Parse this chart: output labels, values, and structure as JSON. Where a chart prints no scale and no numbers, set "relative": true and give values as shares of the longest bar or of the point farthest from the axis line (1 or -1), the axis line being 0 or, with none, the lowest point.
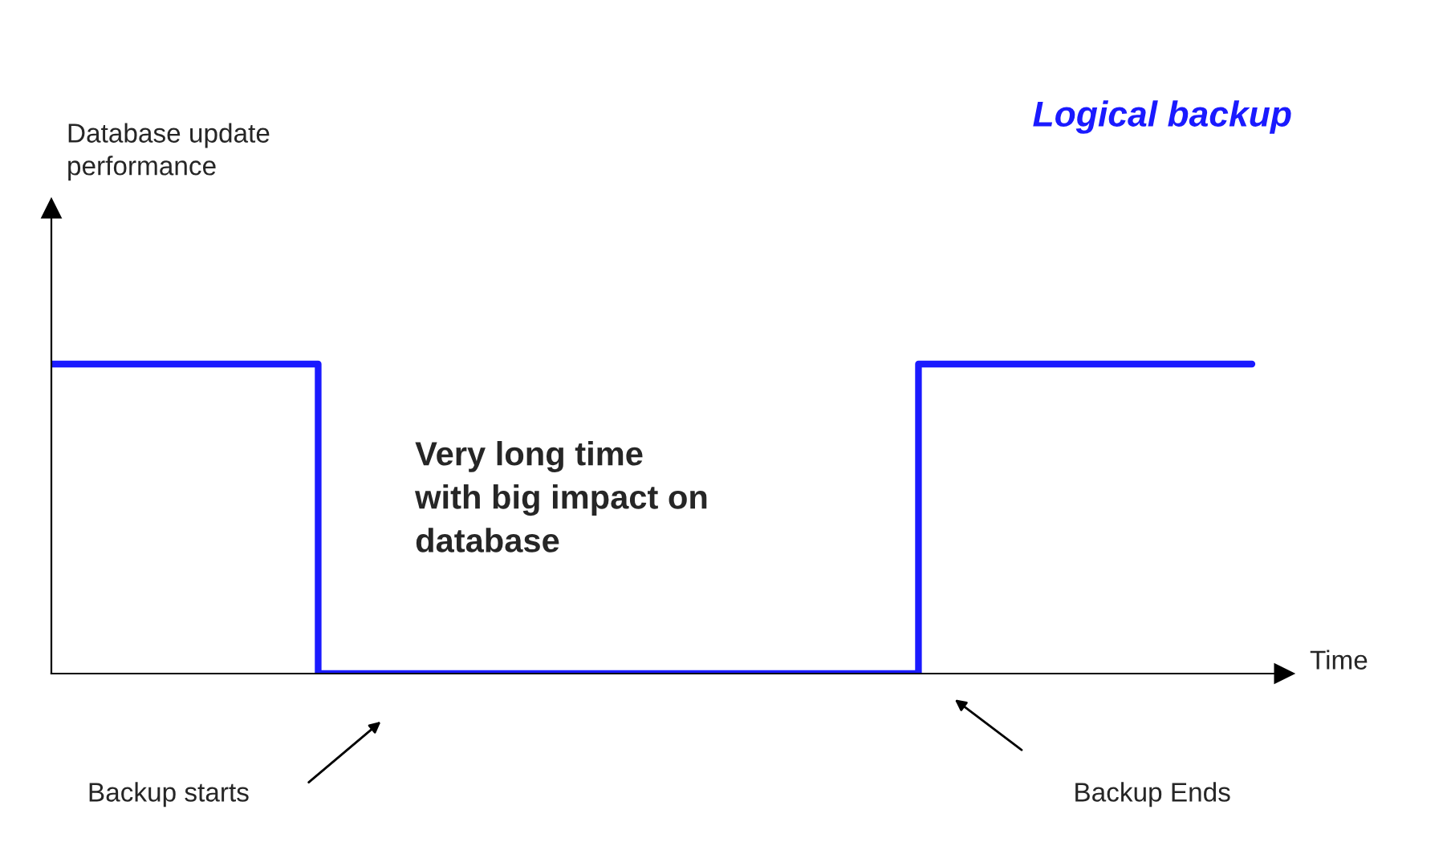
{
  "chart_data": {
    "type": "step",
    "title": "Logical backup",
    "xlabel": "Time",
    "relative": true,
    "tick_labels": false,
    "categories": [
      null,
      null,
      null,
      null,
      null,
      null,
      null,
      null,
      null,
      null,
      null,
      null,
      null,
      null,
      null,
      null,
      null,
      null,
      null,
      null,
      null,
      null,
      null,
      null,
      null,
      null,
      null,
      null,
      null,
      null,
      null,
      null,
      null,
      null,
      null,
      null,
      null
    ],
    "series": [
      {
        "color": "#1a1aff",
        "values": [
          1,
          1,
          1,
          1,
          1,
          1,
          1,
          1,
          0,
          0,
          0,
          0,
          0,
          0,
          0,
          0,
          0,
          0,
          0,
          0,
          0,
          0,
          0,
          0,
          0,
          0,
          1,
          1,
          1,
          1,
          1,
          1,
          1,
          1,
          1,
          1,
          1
        ]
      }
    ],
    "annotations": [
      "Very long time\nwith big impact on\ndatabase",
      "Backup starts",
      "Backup Ends",
      "Database update performance"
    ]
  }
}
